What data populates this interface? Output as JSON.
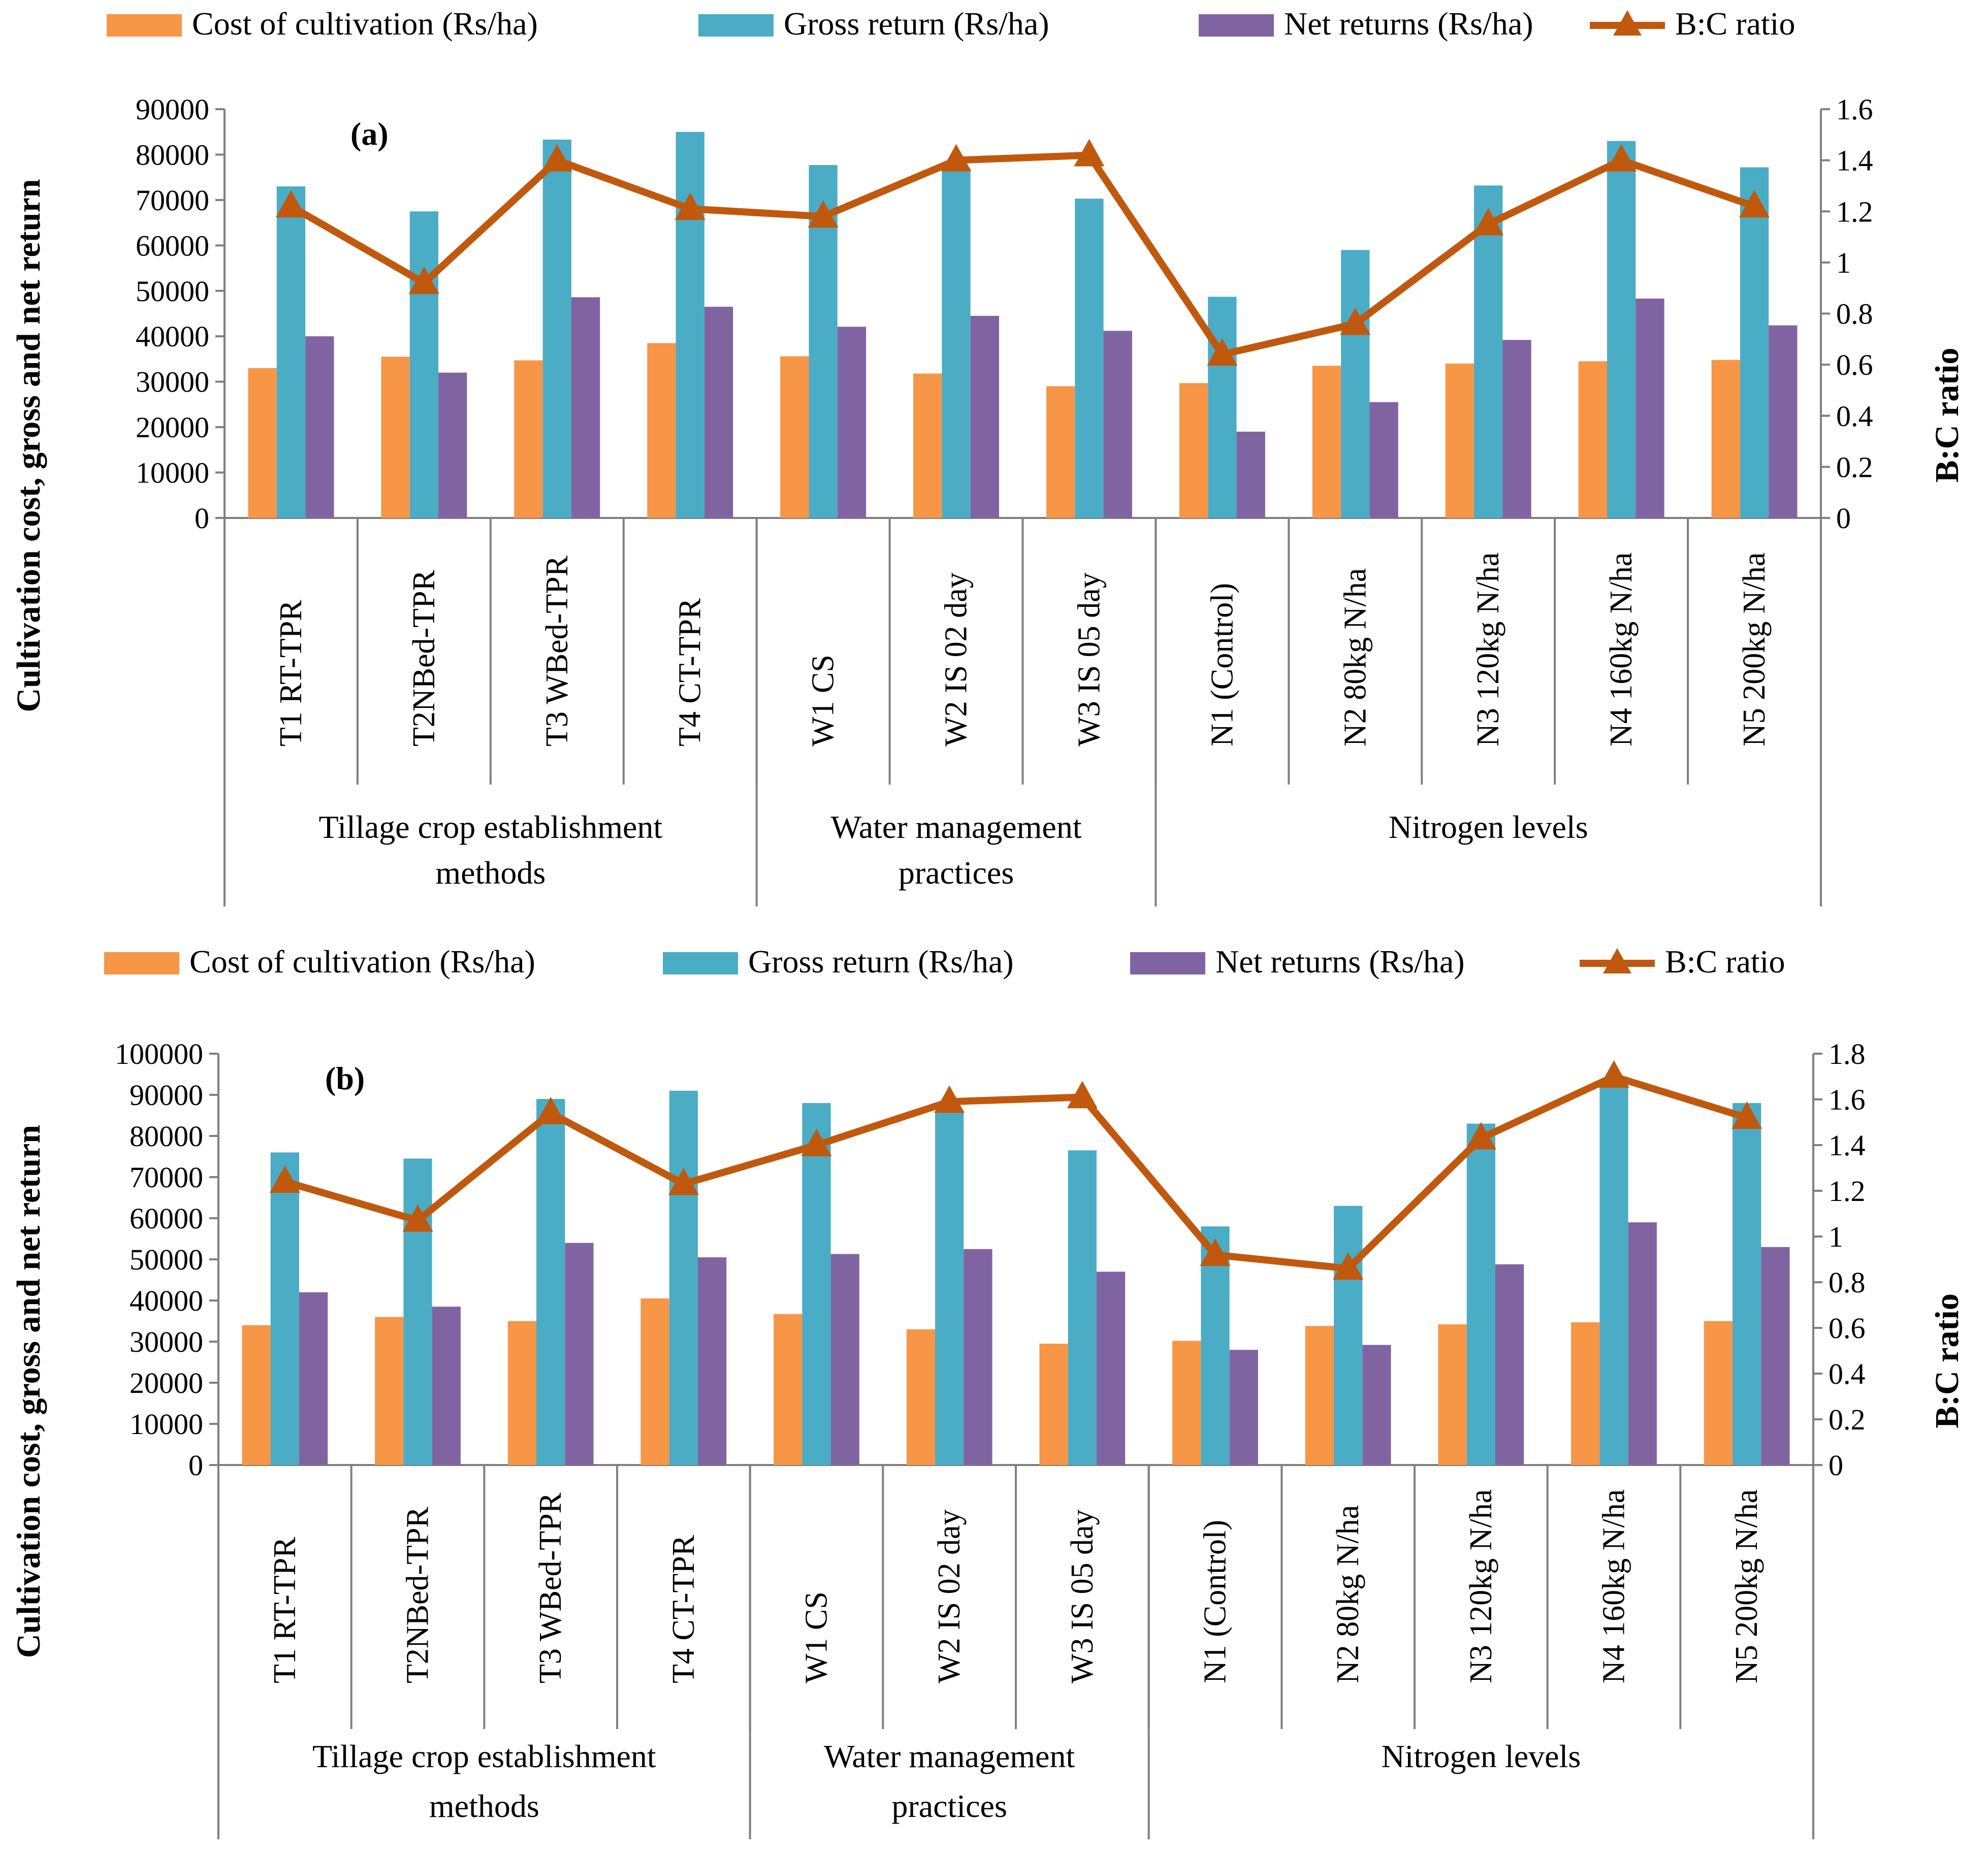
{
  "colors": {
    "cost": "#F79646",
    "gross": "#4BACC6",
    "net": "#8064A2",
    "bc": "#C0590E",
    "axis": "#7f7f7f"
  },
  "chart_data": [
    {
      "type": "bar",
      "panel_label": "(a)",
      "legend": [
        "Cost of cultivation (Rs/ha)",
        "Gross return (Rs/ha)",
        "Net returns (Rs/ha)",
        "B:C ratio"
      ],
      "categories": [
        "T1 RT-TPR",
        "T2NBed-TPR",
        "T3 WBed-TPR",
        "T4 CT-TPR",
        "W1 CS",
        "W2 IS 02 day",
        "W3 IS 05 day",
        "N1 (Control)",
        "N2 80kg N/ha",
        "N3 120kg N/ha",
        "N4 160kg N/ha",
        "N5 200kg N/ha"
      ],
      "groups": [
        {
          "label": "Tillage crop establishment methods",
          "count": 4
        },
        {
          "label": "Water management practices",
          "count": 3
        },
        {
          "label": "Nitrogen levels",
          "count": 5
        }
      ],
      "series": [
        {
          "name": "Cost of cultivation (Rs/ha)",
          "kind": "bar",
          "values": [
            33000,
            35500,
            34700,
            38500,
            35600,
            31800,
            29000,
            29700,
            33500,
            34000,
            34500,
            34800
          ]
        },
        {
          "name": "Gross return (Rs/ha)",
          "kind": "bar",
          "values": [
            73000,
            67500,
            83300,
            85000,
            77700,
            77000,
            70300,
            48700,
            59000,
            73200,
            83000,
            77200
          ]
        },
        {
          "name": "Net returns (Rs/ha)",
          "kind": "bar",
          "values": [
            40000,
            32000,
            48600,
            46500,
            42100,
            44500,
            41200,
            19000,
            25500,
            39200,
            48300,
            42400
          ]
        },
        {
          "name": "B:C ratio",
          "kind": "line",
          "axis": "right",
          "values": [
            1.22,
            0.92,
            1.4,
            1.21,
            1.18,
            1.4,
            1.42,
            0.64,
            0.76,
            1.15,
            1.4,
            1.22
          ]
        }
      ],
      "ylabel": "Cultivation cost, gross and net return",
      "y2label": "B:C ratio",
      "ylim": [
        0,
        90000
      ],
      "yticks": [
        "0",
        "10000",
        "20000",
        "30000",
        "40000",
        "50000",
        "60000",
        "70000",
        "80000",
        "90000"
      ],
      "y2lim": [
        0,
        1.6
      ],
      "y2ticks": [
        "0",
        "0.2",
        "0.4",
        "0.6",
        "0.8",
        "1",
        "1.2",
        "1.4",
        "1.6"
      ],
      "legend_position": "top"
    },
    {
      "type": "bar",
      "panel_label": "(b)",
      "legend": [
        "Cost of cultivation (Rs/ha)",
        "Gross return (Rs/ha)",
        "Net returns (Rs/ha)",
        "B:C ratio"
      ],
      "categories": [
        "T1 RT-TPR",
        "T2NBed-TPR",
        "T3 WBed-TPR",
        "T4 CT-TPR",
        "W1 CS",
        "W2 IS 02 day",
        "W3 IS 05 day",
        "N1 (Control)",
        "N2 80kg N/ha",
        "N3 120kg N/ha",
        "N4 160kg N/ha",
        "N5 200kg N/ha"
      ],
      "groups": [
        {
          "label": "Tillage crop establishment methods",
          "count": 4
        },
        {
          "label": "Water management practices",
          "count": 3
        },
        {
          "label": "Nitrogen levels",
          "count": 5
        }
      ],
      "series": [
        {
          "name": "Cost of cultivation (Rs/ha)",
          "kind": "bar",
          "values": [
            34000,
            36000,
            35000,
            40500,
            36700,
            33000,
            29500,
            30200,
            33800,
            34200,
            34700,
            35000
          ]
        },
        {
          "name": "Gross return (Rs/ha)",
          "kind": "bar",
          "values": [
            76000,
            74500,
            89000,
            91000,
            88000,
            86000,
            76500,
            58000,
            63000,
            83000,
            93500,
            88000
          ]
        },
        {
          "name": "Net returns (Rs/ha)",
          "kind": "bar",
          "values": [
            42000,
            38500,
            54000,
            50500,
            51300,
            52500,
            47000,
            28000,
            29200,
            48800,
            59000,
            53000
          ]
        },
        {
          "name": "B:C ratio",
          "kind": "line",
          "axis": "right",
          "values": [
            1.24,
            1.07,
            1.54,
            1.23,
            1.4,
            1.59,
            1.61,
            0.92,
            0.86,
            1.43,
            1.7,
            1.52
          ]
        }
      ],
      "ylabel": "Cultivation cost, gross and net return",
      "y2label": "B:C ratio",
      "ylim": [
        0,
        100000
      ],
      "yticks": [
        "0",
        "10000",
        "20000",
        "30000",
        "40000",
        "50000",
        "60000",
        "70000",
        "80000",
        "90000",
        "100000"
      ],
      "y2lim": [
        0,
        1.8
      ],
      "y2ticks": [
        "0",
        "0.2",
        "0.4",
        "0.6",
        "0.8",
        "1",
        "1.2",
        "1.4",
        "1.6",
        "1.8"
      ],
      "legend_position": "top"
    }
  ]
}
